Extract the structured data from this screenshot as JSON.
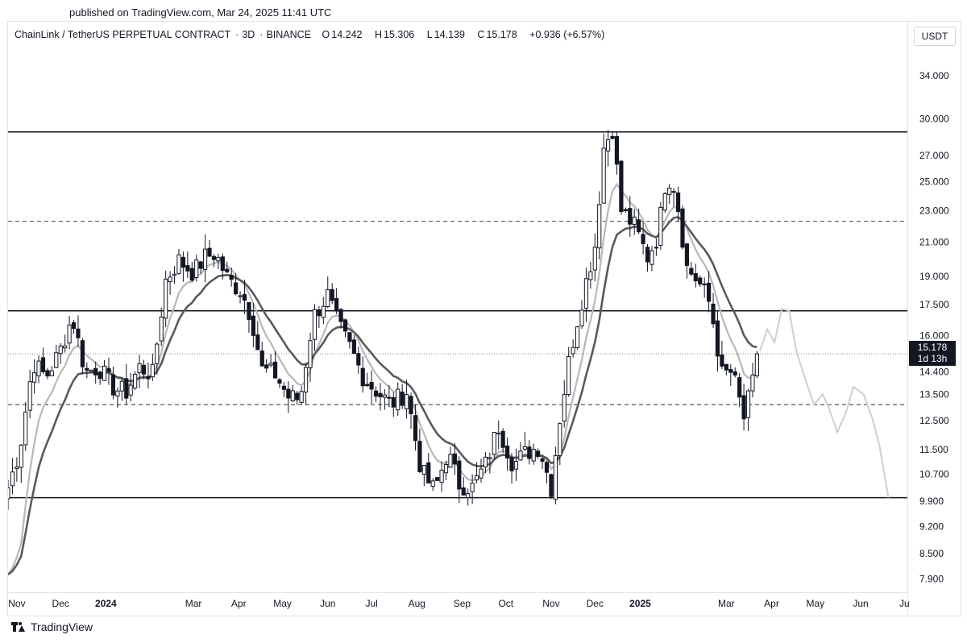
{
  "header": {
    "published": "published on TradingView.com, Mar 24, 2025 11:41 UTC"
  },
  "legend": {
    "symbol": "ChainLink / TetherUS PERPETUAL CONTRACT",
    "interval": "3D",
    "exchange": "BINANCE",
    "open_label": "O",
    "open": "14.242",
    "high_label": "H",
    "high": "15.306",
    "low_label": "L",
    "low": "14.139",
    "close_label": "C",
    "close": "15.178",
    "change": "+0.936 (+6.57%)"
  },
  "currency": "USDT",
  "last_price": {
    "price": "15.178",
    "countdown": "1d 13h"
  },
  "footer": {
    "brand": "TradingView"
  },
  "colors": {
    "candle_up_fill": "#ffffff",
    "candle_down_fill": "#131722",
    "candle_outline": "#131722",
    "ema_fast": "#b8b8b8",
    "ema_slow": "#5a5a5a",
    "projection": "#cfcfcf",
    "level_solid": "#131722",
    "level_dashed": "#555555"
  },
  "chart_data": {
    "type": "candlestick",
    "y_scale": "log",
    "ylim": [
      7.6,
      37.0
    ],
    "y_ticks": [
      "34.000",
      "30.000",
      "27.000",
      "25.000",
      "23.000",
      "21.000",
      "19.000",
      "17.500",
      "16.000",
      "14.400",
      "13.500",
      "12.500",
      "11.500",
      "10.700",
      "9.900",
      "9.200",
      "8.500",
      "7.900"
    ],
    "x_ticks": [
      {
        "label": "Nov",
        "date": "2023-11-01"
      },
      {
        "label": "Dec",
        "date": "2023-12-01"
      },
      {
        "label": "2024",
        "date": "2024-01-01",
        "bold": true
      },
      {
        "label": "Mar",
        "date": "2024-03-01"
      },
      {
        "label": "Apr",
        "date": "2024-04-01"
      },
      {
        "label": "May",
        "date": "2024-05-01"
      },
      {
        "label": "Jun",
        "date": "2024-06-01"
      },
      {
        "label": "Jul",
        "date": "2024-07-01"
      },
      {
        "label": "Aug",
        "date": "2024-08-01"
      },
      {
        "label": "Sep",
        "date": "2024-09-01"
      },
      {
        "label": "Oct",
        "date": "2024-10-01"
      },
      {
        "label": "Nov",
        "date": "2024-11-01"
      },
      {
        "label": "Dec",
        "date": "2024-12-01"
      },
      {
        "label": "2025",
        "date": "2025-01-01",
        "bold": true
      },
      {
        "label": "Mar",
        "date": "2025-03-01"
      },
      {
        "label": "Apr",
        "date": "2025-04-01"
      },
      {
        "label": "May",
        "date": "2025-05-01"
      },
      {
        "label": "Jun",
        "date": "2025-06-01"
      },
      {
        "label": "Ju",
        "date": "2025-07-01"
      }
    ],
    "x_range": [
      "2023-10-26",
      "2025-07-03"
    ],
    "levels": [
      {
        "price": 28.9,
        "style": "solid"
      },
      {
        "price": 22.3,
        "style": "dashed"
      },
      {
        "price": 17.2,
        "style": "solid"
      },
      {
        "price": 13.1,
        "style": "dashed"
      },
      {
        "price": 10.0,
        "style": "solid"
      }
    ],
    "last_price_line": 15.178,
    "anchors": [
      [
        "2023-10-26",
        10.3
      ],
      [
        "2023-11-03",
        11.5
      ],
      [
        "2023-11-12",
        14.8
      ],
      [
        "2023-11-21",
        14.2
      ],
      [
        "2023-11-30",
        15.2
      ],
      [
        "2023-12-09",
        16.9
      ],
      [
        "2023-12-18",
        14.4
      ],
      [
        "2023-12-27",
        14.6
      ],
      [
        "2024-01-07",
        13.7
      ],
      [
        "2024-01-15",
        13.6
      ],
      [
        "2024-01-24",
        14.6
      ],
      [
        "2024-02-02",
        14.3
      ],
      [
        "2024-02-11",
        18.8
      ],
      [
        "2024-02-20",
        19.9
      ],
      [
        "2024-03-01",
        19.2
      ],
      [
        "2024-03-09",
        20.1
      ],
      [
        "2024-03-16",
        20.3
      ],
      [
        "2024-03-25",
        18.8
      ],
      [
        "2024-04-03",
        18.2
      ],
      [
        "2024-04-10",
        16.8
      ],
      [
        "2024-04-17",
        14.5
      ],
      [
        "2024-04-26",
        14.3
      ],
      [
        "2024-05-05",
        13.4
      ],
      [
        "2024-05-13",
        13.3
      ],
      [
        "2024-05-22",
        16.9
      ],
      [
        "2024-06-01",
        18.0
      ],
      [
        "2024-06-08",
        16.5
      ],
      [
        "2024-06-16",
        15.5
      ],
      [
        "2024-06-26",
        14.1
      ],
      [
        "2024-07-05",
        13.6
      ],
      [
        "2024-07-14",
        13.1
      ],
      [
        "2024-07-25",
        13.6
      ],
      [
        "2024-08-04",
        10.8
      ],
      [
        "2024-08-13",
        10.2
      ],
      [
        "2024-08-22",
        11.4
      ],
      [
        "2024-08-30",
        10.4
      ],
      [
        "2024-09-08",
        10.3
      ],
      [
        "2024-09-17",
        11.0
      ],
      [
        "2024-09-26",
        12.3
      ],
      [
        "2024-10-06",
        11.0
      ],
      [
        "2024-10-15",
        11.4
      ],
      [
        "2024-10-24",
        11.6
      ],
      [
        "2024-11-01",
        10.3
      ],
      [
        "2024-11-07",
        12.6
      ],
      [
        "2024-11-14",
        15.2
      ],
      [
        "2024-11-23",
        18.1
      ],
      [
        "2024-12-01",
        20.8
      ],
      [
        "2024-12-07",
        27.6
      ],
      [
        "2024-12-13",
        29.2
      ],
      [
        "2024-12-19",
        23.0
      ],
      [
        "2024-12-28",
        22.0
      ],
      [
        "2025-01-06",
        20.1
      ],
      [
        "2025-01-13",
        21.4
      ],
      [
        "2025-01-19",
        25.5
      ],
      [
        "2025-01-25",
        24.6
      ],
      [
        "2025-02-02",
        19.5
      ],
      [
        "2025-02-10",
        18.7
      ],
      [
        "2025-02-18",
        17.5
      ],
      [
        "2025-02-26",
        14.3
      ],
      [
        "2025-03-05",
        14.4
      ],
      [
        "2025-03-13",
        12.6
      ],
      [
        "2025-03-24",
        15.178
      ]
    ],
    "projection": [
      [
        "2025-03-24",
        15.3
      ],
      [
        "2025-03-29",
        16.3
      ],
      [
        "2025-04-03",
        15.7
      ],
      [
        "2025-04-08",
        17.3
      ],
      [
        "2025-04-13",
        17.2
      ],
      [
        "2025-04-18",
        15.3
      ],
      [
        "2025-04-24",
        14.1
      ],
      [
        "2025-04-30",
        13.1
      ],
      [
        "2025-05-06",
        13.5
      ],
      [
        "2025-05-10",
        13.0
      ],
      [
        "2025-05-16",
        12.1
      ],
      [
        "2025-05-22",
        12.8
      ],
      [
        "2025-05-27",
        13.8
      ],
      [
        "2025-06-03",
        13.5
      ],
      [
        "2025-06-09",
        12.6
      ],
      [
        "2025-06-14",
        11.6
      ],
      [
        "2025-06-20",
        10.0
      ]
    ]
  }
}
